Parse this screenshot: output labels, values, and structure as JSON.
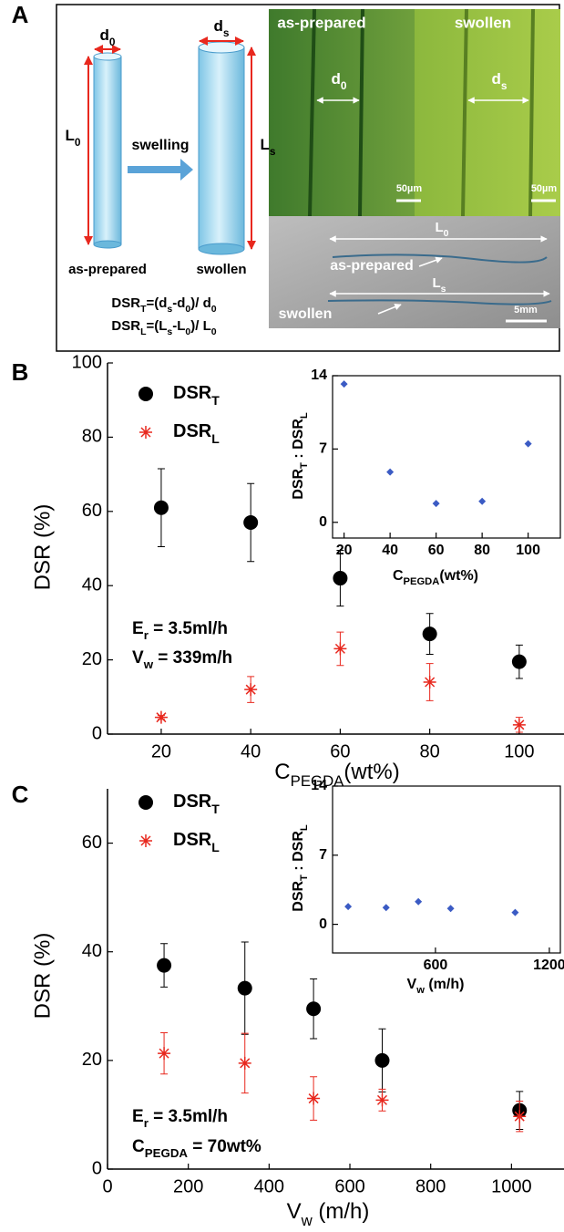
{
  "panel_labels": [
    "A",
    "B",
    "C"
  ],
  "panel_a": {
    "schematic": {
      "d0": [
        {
          "t": "d"
        },
        {
          "t": "0",
          "sub": true
        }
      ],
      "ds": [
        {
          "t": "d"
        },
        {
          "t": "s",
          "sub": true
        }
      ],
      "L0": [
        {
          "t": "L"
        },
        {
          "t": "0",
          "sub": true
        }
      ],
      "Ls": [
        {
          "t": "L"
        },
        {
          "t": "s",
          "sub": true
        }
      ],
      "arrow_label": "swelling",
      "left_label": "as-prepared",
      "right_label": "swollen",
      "equations": [
        [
          {
            "t": "DSR"
          },
          {
            "t": "T",
            "sub": true
          },
          {
            "t": "=(d"
          },
          {
            "t": "s",
            "sub": true
          },
          {
            "t": "-d"
          },
          {
            "t": "0",
            "sub": true
          },
          {
            "t": ")/ d"
          },
          {
            "t": "0",
            "sub": true
          }
        ],
        [
          {
            "t": "DSR"
          },
          {
            "t": "L",
            "sub": true
          },
          {
            "t": "=(L"
          },
          {
            "t": "s",
            "sub": true
          },
          {
            "t": "-L"
          },
          {
            "t": "0",
            "sub": true
          },
          {
            "t": ")/ L"
          },
          {
            "t": "0",
            "sub": true
          }
        ]
      ]
    },
    "micrographs": {
      "left_label": "as-prepared",
      "right_label": "swollen",
      "left_width": [
        {
          "t": "d"
        },
        {
          "t": "0",
          "sub": true
        }
      ],
      "right_width": [
        {
          "t": "d"
        },
        {
          "t": "s",
          "sub": true
        }
      ],
      "scale_bars": [
        "50µm",
        "50µm"
      ]
    },
    "macro_photo": {
      "top_length": [
        {
          "t": "L"
        },
        {
          "t": "0",
          "sub": true
        }
      ],
      "top_label": "as-prepared",
      "bottom_length": [
        {
          "t": "L"
        },
        {
          "t": "s",
          "sub": true
        }
      ],
      "bottom_label": "swollen",
      "scale_bar": "5mm"
    }
  },
  "chart_data": [
    {
      "type": "scatter",
      "ylabel": "DSR (%)",
      "xlabel": [
        {
          "t": "C"
        },
        {
          "t": "PEGDA",
          "sub": true
        },
        {
          "t": "(wt%)"
        }
      ],
      "xlim": [
        8,
        110
      ],
      "ylim": [
        0,
        100
      ],
      "xticks": [
        20,
        40,
        60,
        80,
        100
      ],
      "yticks": [
        0,
        20,
        40,
        60,
        80,
        100
      ],
      "series": [
        {
          "name": [
            {
              "t": "DSR"
            },
            {
              "t": "T",
              "sub": true
            }
          ],
          "marker": "circle",
          "color": "#000000",
          "x": [
            20,
            40,
            60,
            80,
            100
          ],
          "values": [
            61,
            57,
            42,
            27,
            19.5
          ],
          "errors": [
            10.5,
            10.5,
            7.5,
            5.5,
            4.5
          ]
        },
        {
          "name": [
            {
              "t": "DSR"
            },
            {
              "t": "L",
              "sub": true
            }
          ],
          "marker": "asterisk",
          "color": "#e8281e",
          "x": [
            20,
            40,
            60,
            80,
            100
          ],
          "values": [
            4.5,
            12,
            23,
            14,
            2.5
          ],
          "errors": [
            0.5,
            3.5,
            4.5,
            5,
            2
          ]
        }
      ],
      "annotations": [
        [
          {
            "t": "E"
          },
          {
            "t": "r",
            "sub": true
          },
          {
            "t": " = 3.5ml/h"
          }
        ],
        [
          {
            "t": "V"
          },
          {
            "t": "w",
            "sub": true
          },
          {
            "t": " = 339m/h"
          }
        ]
      ]
    },
    {
      "type": "scatter",
      "ylabel": [
        {
          "t": "DSR"
        },
        {
          "t": "T",
          "sub": true
        },
        {
          "t": " : DSR"
        },
        {
          "t": "L",
          "sub": true
        }
      ],
      "xlabel": [
        {
          "t": "C"
        },
        {
          "t": "PEGDA",
          "sub": true
        },
        {
          "t": "(wt%)"
        }
      ],
      "xlim": [
        15,
        114
      ],
      "ylim": [
        -1.5,
        14
      ],
      "xticks": [
        20,
        40,
        60,
        80,
        100
      ],
      "yticks": [
        0,
        7,
        14
      ],
      "series": [
        {
          "marker": "diamond",
          "color": "#3b5bc4",
          "x": [
            20,
            40,
            60,
            80,
            100
          ],
          "values": [
            13.2,
            4.8,
            1.8,
            2.0,
            7.5
          ]
        }
      ]
    },
    {
      "type": "scatter",
      "ylabel": "DSR (%)",
      "xlabel": [
        {
          "t": "V"
        },
        {
          "t": "w",
          "sub": true
        },
        {
          "t": " (m/h)"
        }
      ],
      "xlim": [
        0,
        1130
      ],
      "ylim": [
        0,
        70
      ],
      "xticks": [
        0,
        200,
        400,
        600,
        800,
        1000
      ],
      "yticks": [
        0,
        20,
        40,
        60
      ],
      "series": [
        {
          "name": [
            {
              "t": "DSR"
            },
            {
              "t": "T",
              "sub": true
            }
          ],
          "marker": "circle",
          "color": "#000000",
          "x": [
            140,
            340,
            510,
            680,
            1020
          ],
          "values": [
            37.5,
            33.3,
            29.5,
            20,
            10.8
          ],
          "errors": [
            4,
            8.5,
            5.5,
            5.8,
            3.5
          ]
        },
        {
          "name": [
            {
              "t": "DSR"
            },
            {
              "t": "L",
              "sub": true
            }
          ],
          "marker": "asterisk",
          "color": "#e8281e",
          "x": [
            140,
            340,
            510,
            680,
            1020
          ],
          "values": [
            21.3,
            19.5,
            13,
            12.7,
            9.7
          ],
          "errors": [
            3.8,
            5.5,
            4,
            2,
            2.8
          ]
        }
      ],
      "annotations": [
        [
          {
            "t": "E"
          },
          {
            "t": "r",
            "sub": true
          },
          {
            "t": " = 3.5ml/h"
          }
        ],
        [
          {
            "t": "C"
          },
          {
            "t": "PEGDA",
            "sub": true
          },
          {
            "t": " = 70wt%"
          }
        ]
      ]
    },
    {
      "type": "scatter",
      "ylabel": [
        {
          "t": "DSR"
        },
        {
          "t": "T",
          "sub": true
        },
        {
          "t": " : DSR"
        },
        {
          "t": "L",
          "sub": true
        }
      ],
      "xlabel": [
        {
          "t": "V"
        },
        {
          "t": "w",
          "sub": true
        },
        {
          "t": " (m/h)"
        }
      ],
      "xlim": [
        58,
        1258
      ],
      "ylim": [
        -2.9,
        14
      ],
      "xticks": [
        600,
        1200
      ],
      "yticks": [
        0,
        7,
        14
      ],
      "series": [
        {
          "marker": "diamond",
          "color": "#3b5bc4",
          "x": [
            140,
            340,
            510,
            680,
            1020
          ],
          "values": [
            1.8,
            1.7,
            2.3,
            1.6,
            1.2
          ]
        }
      ]
    }
  ]
}
